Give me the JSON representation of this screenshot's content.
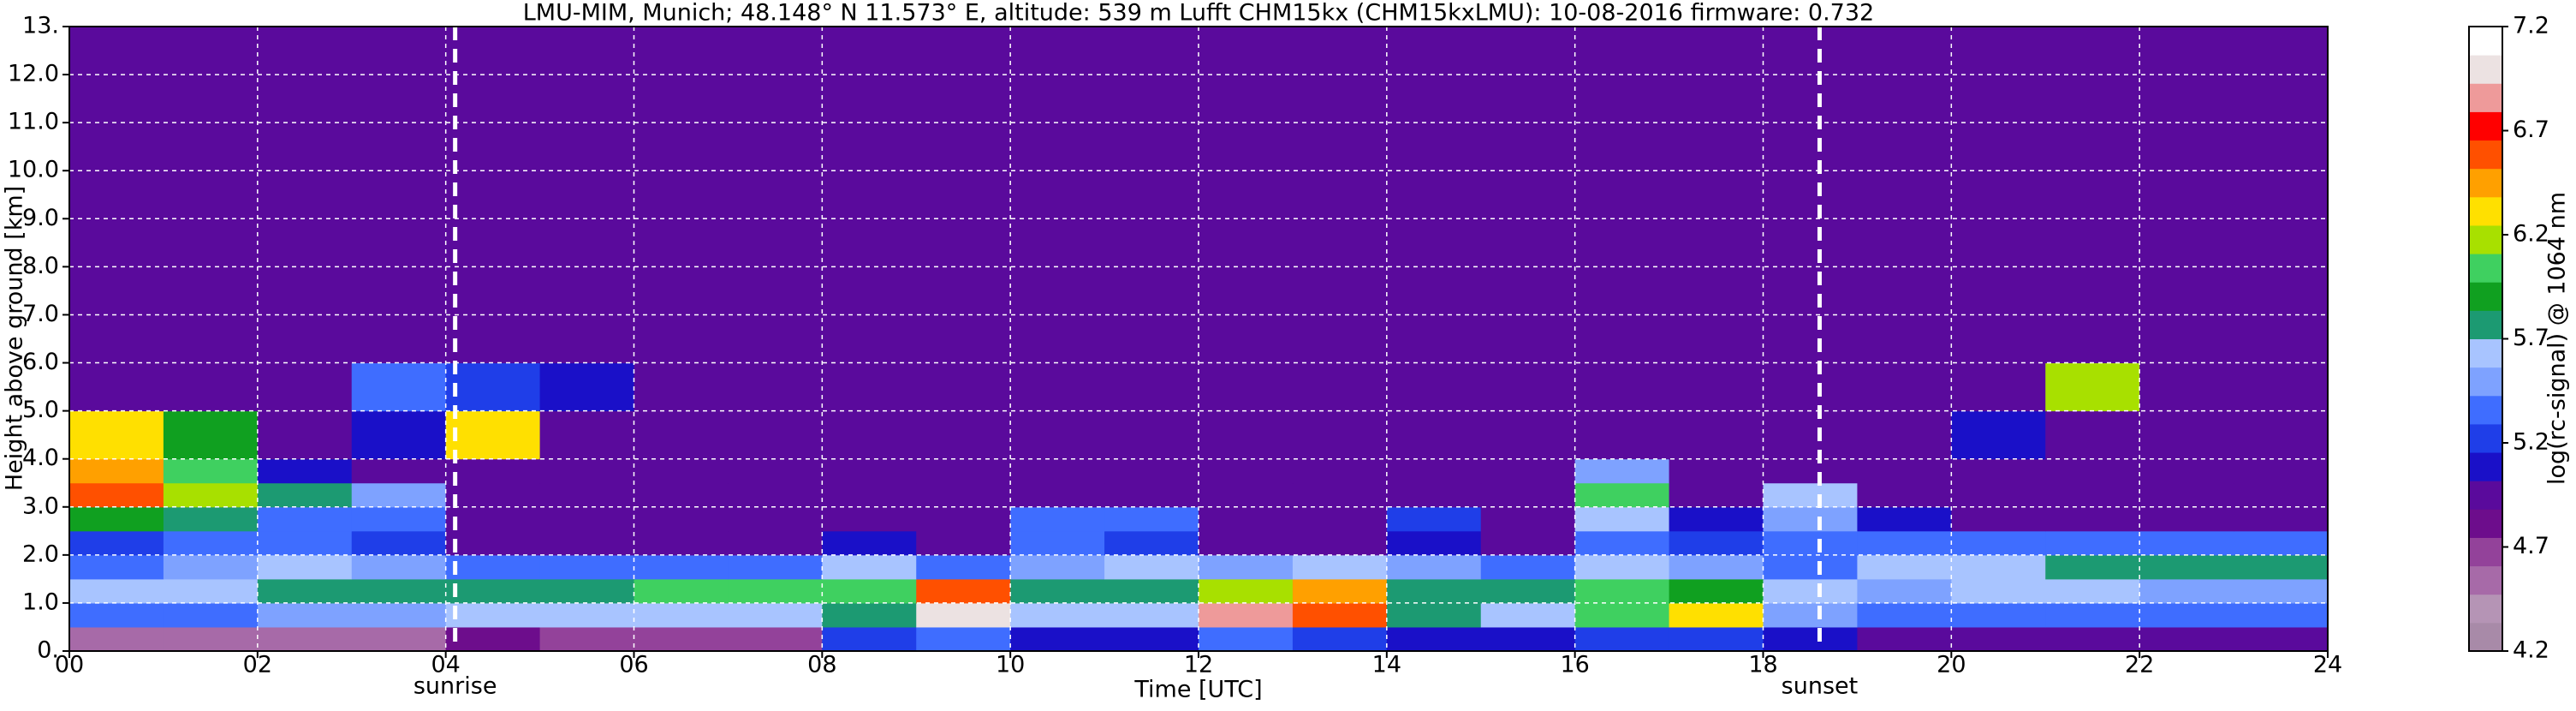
{
  "chart_data": {
    "type": "heatmap",
    "title": "LMU-MIM, Munich; 48.148° N 11.573° E, altitude: 539 m    Lufft CHM15kx (CHM15kxLMU): 10-08-2016    firmware: 0.732",
    "x_label": "Time [UTC]",
    "y_label": "Height above ground [km]",
    "colorbar_label": "log(rc-signal) @ 1064 nm",
    "x_edges": [
      0,
      1,
      2,
      3,
      4,
      5,
      6,
      7,
      8,
      9,
      10,
      11,
      12,
      13,
      14,
      15,
      16,
      17,
      18,
      19,
      20,
      21,
      22,
      23,
      24
    ],
    "y_edges": [
      0,
      0.5,
      1,
      1.5,
      2,
      2.5,
      3,
      3.5,
      4,
      5,
      6,
      7,
      13
    ],
    "values": [
      [
        4.5,
        4.5,
        4.6,
        4.6,
        4.8,
        4.7,
        4.7,
        4.7,
        5.2,
        5.4,
        5.1,
        5.1,
        5.3,
        5.2,
        5.1,
        5.1,
        5.2,
        5.2,
        5.1,
        5.0,
        5.0,
        5.0,
        5.0,
        5.0
      ],
      [
        5.3,
        5.3,
        5.5,
        5.5,
        5.6,
        5.6,
        5.6,
        5.6,
        5.8,
        7.0,
        5.6,
        5.6,
        6.8,
        6.6,
        5.7,
        5.6,
        6.0,
        6.3,
        5.5,
        5.3,
        5.3,
        5.3,
        5.3,
        5.3
      ],
      [
        5.6,
        5.6,
        5.7,
        5.7,
        5.7,
        5.8,
        6.0,
        6.0,
        6.0,
        6.6,
        5.7,
        5.8,
        6.2,
        6.4,
        5.8,
        5.8,
        6.0,
        5.9,
        5.6,
        5.5,
        5.6,
        5.6,
        5.5,
        5.5
      ],
      [
        5.4,
        5.5,
        5.6,
        5.5,
        5.4,
        5.3,
        5.3,
        5.3,
        5.6,
        5.3,
        5.5,
        5.6,
        5.5,
        5.6,
        5.5,
        5.4,
        5.6,
        5.5,
        5.4,
        5.6,
        5.6,
        5.7,
        5.7,
        5.7
      ],
      [
        5.2,
        5.3,
        5.3,
        5.2,
        5.0,
        5.0,
        5.0,
        5.0,
        5.1,
        5.0,
        5.3,
        5.2,
        5.0,
        5.0,
        5.1,
        5.0,
        5.3,
        5.2,
        5.3,
        5.4,
        5.3,
        5.3,
        5.3,
        5.3
      ],
      [
        5.9,
        5.8,
        5.4,
        5.3,
        5.0,
        5.0,
        5.0,
        5.0,
        5.0,
        5.0,
        5.4,
        5.3,
        5.0,
        5.0,
        5.2,
        5.0,
        5.6,
        5.1,
        5.5,
        5.1,
        5.0,
        5.0,
        5.0,
        5.0
      ],
      [
        6.6,
        6.2,
        5.8,
        5.5,
        5.0,
        5.0,
        5.0,
        5.0,
        5.0,
        5.0,
        5.0,
        5.0,
        5.0,
        5.0,
        5.0,
        5.0,
        6.0,
        5.0,
        5.6,
        5.0,
        5.0,
        5.0,
        5.0,
        5.0
      ],
      [
        6.5,
        6.0,
        5.1,
        5.0,
        5.0,
        5.0,
        5.0,
        5.0,
        5.0,
        5.0,
        5.0,
        5.0,
        5.0,
        5.0,
        5.0,
        5.0,
        5.5,
        5.0,
        5.0,
        5.0,
        5.0,
        5.0,
        5.0,
        5.0
      ],
      [
        6.3,
        5.9,
        5.0,
        5.1,
        6.3,
        5.0,
        5.0,
        5.0,
        5.0,
        5.0,
        5.0,
        5.0,
        5.0,
        5.0,
        5.0,
        5.0,
        5.0,
        5.0,
        5.0,
        5.0,
        5.1,
        5.0,
        5.0,
        5.0
      ],
      [
        5.0,
        5.0,
        5.0,
        5.3,
        5.2,
        5.1,
        5.0,
        5.0,
        5.0,
        5.0,
        5.0,
        5.0,
        5.0,
        5.0,
        5.0,
        5.0,
        5.0,
        5.0,
        5.0,
        5.0,
        5.0,
        6.2,
        5.0,
        5.0
      ],
      [
        5.0,
        5.0,
        5.0,
        5.0,
        5.0,
        5.0,
        5.0,
        5.0,
        5.0,
        5.0,
        5.0,
        5.0,
        5.0,
        5.0,
        5.0,
        5.0,
        5.0,
        5.0,
        5.0,
        5.0,
        5.0,
        5.0,
        5.0,
        5.0
      ],
      [
        4.9,
        4.9,
        4.9,
        4.9,
        4.9,
        4.9,
        4.9,
        4.9,
        4.9,
        4.9,
        4.9,
        4.9,
        4.9,
        4.9,
        4.9,
        4.9,
        4.9,
        4.9,
        4.9,
        4.9,
        4.9,
        4.9,
        4.9,
        4.9
      ]
    ],
    "xlim": [
      0,
      24
    ],
    "ylim": [
      0,
      13
    ],
    "xticks": [
      {
        "value": 0,
        "label": "00"
      },
      {
        "value": 2,
        "label": "02"
      },
      {
        "value": 4,
        "label": "04"
      },
      {
        "value": 6,
        "label": "06"
      },
      {
        "value": 8,
        "label": "08"
      },
      10,
      12,
      14,
      16,
      18,
      20,
      22,
      24
    ],
    "yticks": [
      {
        "value": 0,
        "label": "0."
      },
      {
        "value": 1,
        "label": "1.0"
      },
      {
        "value": 2,
        "label": "2.0"
      },
      {
        "value": 3,
        "label": "3.0"
      },
      {
        "value": 4,
        "label": "4.0"
      },
      {
        "value": 5,
        "label": "5.0"
      },
      {
        "value": 6,
        "label": "6.0"
      },
      {
        "value": 7,
        "label": "7.0"
      },
      {
        "value": 8,
        "label": "8.0"
      },
      {
        "value": 9,
        "label": "9.0"
      },
      {
        "value": 10,
        "label": "10.0"
      },
      {
        "value": 11,
        "label": "11.0"
      },
      {
        "value": 12,
        "label": "12.0"
      },
      {
        "value": 13,
        "label": "13."
      }
    ],
    "clim": [
      4.2,
      7.2
    ],
    "cticks": [
      4.2,
      4.7,
      5.2,
      5.7,
      6.2,
      6.7,
      7.2
    ],
    "colormap": [
      "#a88aa8",
      "#b594b5",
      "#a76aa8",
      "#93429a",
      "#6d0d8c",
      "#5a0a9c",
      "#1a10c8",
      "#1f3ee8",
      "#3f6dff",
      "#7ea2ff",
      "#a8c4ff",
      "#1c9a72",
      "#10a020",
      "#3fd060",
      "#a8e000",
      "#ffe000",
      "#ffa000",
      "#ff5000",
      "#ff0000",
      "#ee9a9a",
      "#ece2e2",
      "#ffffff"
    ],
    "grid": true,
    "annotations": [
      {
        "text": "sunrise",
        "x": 4.1
      },
      {
        "text": "sunset",
        "x": 18.6
      }
    ]
  }
}
